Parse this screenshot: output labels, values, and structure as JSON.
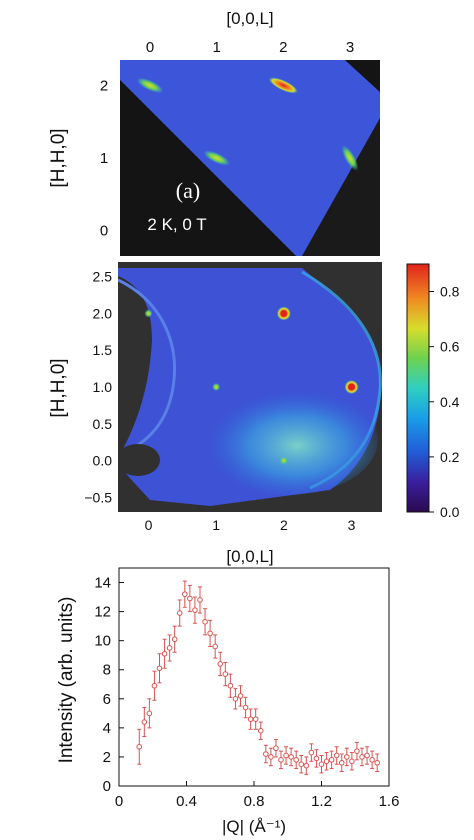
{
  "chart_data": [
    {
      "type": "heatmap",
      "panel_label": "(a)",
      "condition": "2 K, 0 T",
      "xlabel": "[0,0,L]",
      "ylabel": "[H,H,0]",
      "xticks": [
        "0",
        "1",
        "2",
        "3"
      ],
      "yticks": [
        "2",
        "1",
        "0"
      ],
      "xlim": [
        -0.45,
        3.45
      ],
      "ylim": [
        -0.35,
        2.35
      ],
      "colormap": "jet",
      "peaks": [
        {
          "L": 0,
          "H": 2,
          "intensity": 0.45
        },
        {
          "L": 1,
          "H": 1,
          "intensity": 0.45
        },
        {
          "L": 2,
          "H": 2,
          "intensity": 0.6
        },
        {
          "L": 3,
          "H": 1,
          "intensity": 0.45
        }
      ]
    },
    {
      "type": "heatmap",
      "xlabel": "[0,0,L]",
      "ylabel": "[H,H,0]",
      "xticks": [
        "0",
        "1",
        "2",
        "3"
      ],
      "yticks": [
        "2.5",
        "2.0",
        "1.5",
        "1.0",
        "0.5",
        "0.0",
        "−0.5"
      ],
      "xlim": [
        -0.45,
        3.45
      ],
      "ylim": [
        -0.7,
        2.7
      ],
      "colormap": "jet",
      "colorbar": {
        "min": 0.0,
        "max": 0.9,
        "ticks": [
          "0.8",
          "0.6",
          "0.4",
          "0.2",
          "0.0"
        ]
      },
      "peaks": [
        {
          "L": 0,
          "H": 2,
          "intensity": 0.45
        },
        {
          "L": 1,
          "H": 1,
          "intensity": 0.45
        },
        {
          "L": 2,
          "H": 2,
          "intensity": 0.85
        },
        {
          "L": 3,
          "H": 1,
          "intensity": 0.85
        },
        {
          "L": 2,
          "H": 0,
          "intensity": 0.5
        }
      ]
    },
    {
      "type": "scatter",
      "xlabel": "|Q| (Å⁻¹)",
      "ylabel": "Intensity (arb. units)",
      "xticks": [
        "0",
        "0.4",
        "0.8",
        "1.2",
        "1.6"
      ],
      "yticks": [
        "14",
        "12",
        "10",
        "8",
        "6",
        "4",
        "2",
        "0"
      ],
      "xlim": [
        0,
        1.6
      ],
      "ylim": [
        0,
        15
      ],
      "series": [
        {
          "color": "#d9534f",
          "x": [
            0.12,
            0.15,
            0.18,
            0.21,
            0.24,
            0.27,
            0.3,
            0.33,
            0.36,
            0.39,
            0.42,
            0.45,
            0.48,
            0.51,
            0.54,
            0.57,
            0.6,
            0.63,
            0.66,
            0.69,
            0.72,
            0.75,
            0.78,
            0.81,
            0.84,
            0.87,
            0.9,
            0.93,
            0.96,
            0.99,
            1.02,
            1.05,
            1.08,
            1.11,
            1.14,
            1.17,
            1.2,
            1.23,
            1.26,
            1.29,
            1.32,
            1.35,
            1.38,
            1.41,
            1.44,
            1.47,
            1.5,
            1.53
          ],
          "y": [
            2.7,
            4.4,
            5.0,
            6.9,
            8.1,
            9.1,
            9.5,
            10.1,
            11.9,
            13.2,
            12.9,
            12.1,
            12.8,
            11.3,
            10.5,
            9.6,
            8.4,
            7.7,
            6.9,
            6.0,
            6.2,
            5.4,
            4.6,
            4.6,
            3.8,
            2.2,
            2.0,
            2.6,
            1.8,
            2.1,
            2.0,
            1.8,
            1.5,
            1.4,
            2.3,
            1.9,
            1.5,
            1.7,
            1.8,
            2.1,
            1.6,
            2.0,
            1.7,
            2.4,
            2.0,
            2.1,
            1.8,
            1.6
          ],
          "err": [
            1.2,
            1.0,
            1.0,
            1.0,
            1.0,
            1.0,
            0.9,
            0.9,
            0.9,
            0.9,
            0.9,
            0.9,
            0.9,
            0.9,
            0.9,
            0.8,
            0.8,
            0.8,
            0.8,
            0.7,
            0.7,
            0.7,
            0.7,
            0.7,
            0.6,
            0.6,
            0.6,
            0.6,
            0.6,
            0.6,
            0.6,
            0.6,
            0.6,
            0.6,
            0.6,
            0.6,
            0.6,
            0.6,
            0.6,
            0.6,
            0.6,
            0.6,
            0.6,
            0.6,
            0.6,
            0.6,
            0.6,
            0.6
          ]
        }
      ]
    }
  ]
}
